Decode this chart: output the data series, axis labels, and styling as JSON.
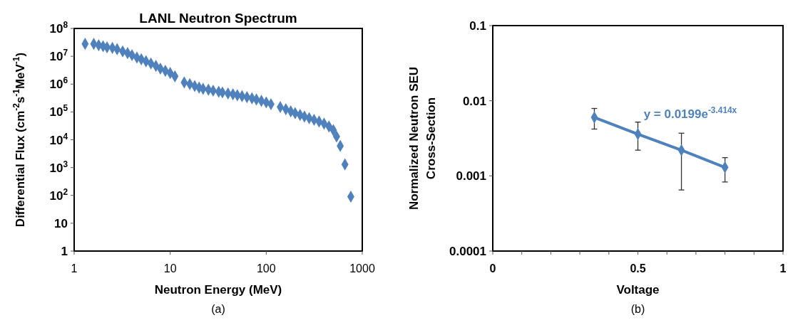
{
  "chart_data": [
    {
      "type": "scatter",
      "title": "LANL Neutron Spectrum",
      "xlabel": "Neutron Energy (MeV)",
      "ylabel": "Differential Flux (cm$^{-2}$s$^{-1}$MeV$^{-1}$)",
      "log": "xy",
      "marker": "diamond",
      "xlim": [
        1,
        1000
      ],
      "ylim": [
        1,
        100000000
      ],
      "xticks": [
        1,
        10,
        100,
        1000
      ],
      "yticks": [
        1,
        10,
        {
          "value": 100,
          "label": "10$^{2}$"
        },
        {
          "value": 1000,
          "label": "10$^{3}$"
        },
        {
          "value": 10000,
          "label": "10$^{4}$"
        },
        {
          "value": 100000,
          "label": "10$^{5}$"
        },
        {
          "value": 1000000,
          "label": "10$^{6}$"
        },
        {
          "value": 10000000,
          "label": "10$^{7}$"
        },
        {
          "value": 100000000,
          "label": "10$^{8}$"
        }
      ],
      "annotations": [
        "(a)"
      ],
      "series": [
        {
          "color": "#4f81bd",
          "x": [
            1.3,
            1.6,
            1.8,
            2.0,
            2.2,
            2.5,
            2.8,
            3.2,
            3.6,
            4.0,
            4.5,
            5.0,
            5.6,
            6.3,
            7.1,
            7.9,
            8.9,
            10,
            11.2,
            14,
            16,
            18,
            20,
            22,
            25,
            28,
            32,
            35,
            40,
            45,
            50,
            56,
            63,
            71,
            79,
            89,
            100,
            112,
            140,
            160,
            180,
            200,
            225,
            250,
            280,
            315,
            355,
            400,
            450,
            500,
            540,
            590,
            660,
            760
          ],
          "values": [
            28000000,
            28000000,
            25000000,
            23000000,
            21000000,
            20000000,
            18000000,
            15000000,
            13000000,
            11000000,
            9000000,
            7800000,
            6600000,
            5500000,
            4500000,
            3600000,
            3000000,
            2500000,
            1900000,
            1150000,
            1000000,
            850000,
            750000,
            680000,
            630000,
            580000,
            530000,
            500000,
            460000,
            430000,
            400000,
            370000,
            340000,
            310000,
            280000,
            250000,
            220000,
            190000,
            150000,
            125000,
            105000,
            90000,
            78000,
            68000,
            60000,
            52000,
            45000,
            38000,
            30000,
            22000,
            13000,
            6000,
            1300,
            90
          ]
        }
      ]
    },
    {
      "type": "line",
      "xlabel": "Voltage",
      "ylabel": "Normalized  Neutron SEU Cross-Section",
      "log": "y",
      "marker": "diamond",
      "xlim": [
        0,
        1
      ],
      "ylim": [
        0.0001,
        0.1
      ],
      "xticks": [
        0,
        {
          "value": 0.1,
          "label": null
        },
        {
          "value": 0.2,
          "label": null
        },
        {
          "value": 0.3,
          "label": null
        },
        {
          "value": 0.4,
          "label": null
        },
        0.5,
        {
          "value": 0.6,
          "label": null
        },
        {
          "value": 0.7,
          "label": null
        },
        {
          "value": 0.8,
          "label": null
        },
        {
          "value": 0.9,
          "label": null
        },
        1
      ],
      "yticks": [
        0.0001,
        0.001,
        0.01,
        0.1
      ],
      "annotations": [
        "y = 0.0199e$^{-3.414x}$",
        "(b)"
      ],
      "series": [
        {
          "color": "#4f81bd",
          "x": [
            0.35,
            0.5,
            0.65,
            0.8
          ],
          "values": [
            0.006,
            0.0036,
            0.0022,
            0.0013
          ],
          "errors": [
            [
              0.0042,
              0.0079
            ],
            [
              0.0022,
              0.0052
            ],
            [
              0.00065,
              0.0037
            ],
            [
              0.00083,
              0.00175
            ]
          ]
        }
      ]
    }
  ]
}
